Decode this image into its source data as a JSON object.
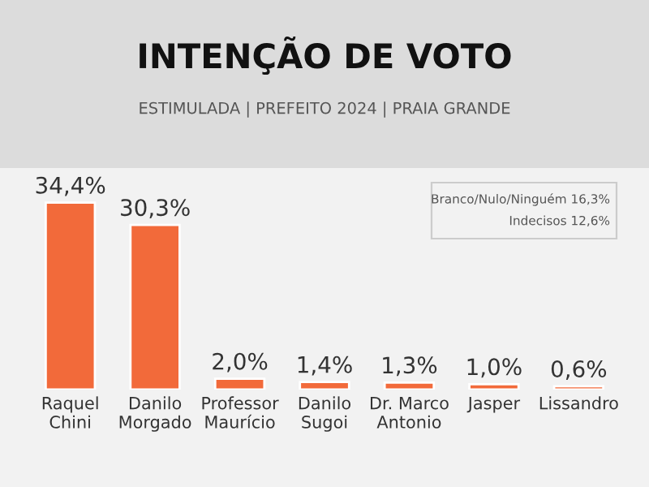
{
  "chart_data": {
    "type": "bar",
    "title": "INTENÇÃO DE VOTO",
    "subtitle": "ESTIMULADA | PREFEITO 2024 | PRAIA GRANDE",
    "categories": [
      "Raquel\nChini",
      "Danilo\nMorgado",
      "Professor\nMaurício",
      "Danilo\nSugoi",
      "Dr. Marco\nAntonio",
      "Jasper",
      "Lissandro"
    ],
    "values": [
      34.4,
      30.3,
      2.0,
      1.4,
      1.3,
      1.0,
      0.6
    ],
    "value_labels": [
      "34,4%",
      "30,3%",
      "2,0%",
      "1,4%",
      "1,3%",
      "1,0%",
      "0,6%"
    ],
    "color": "#f26a3a",
    "annotations": [
      "Branco/Nulo/Ninguém 16,3%",
      "Indecisos 12,6%"
    ],
    "grid": false,
    "legend": false
  }
}
